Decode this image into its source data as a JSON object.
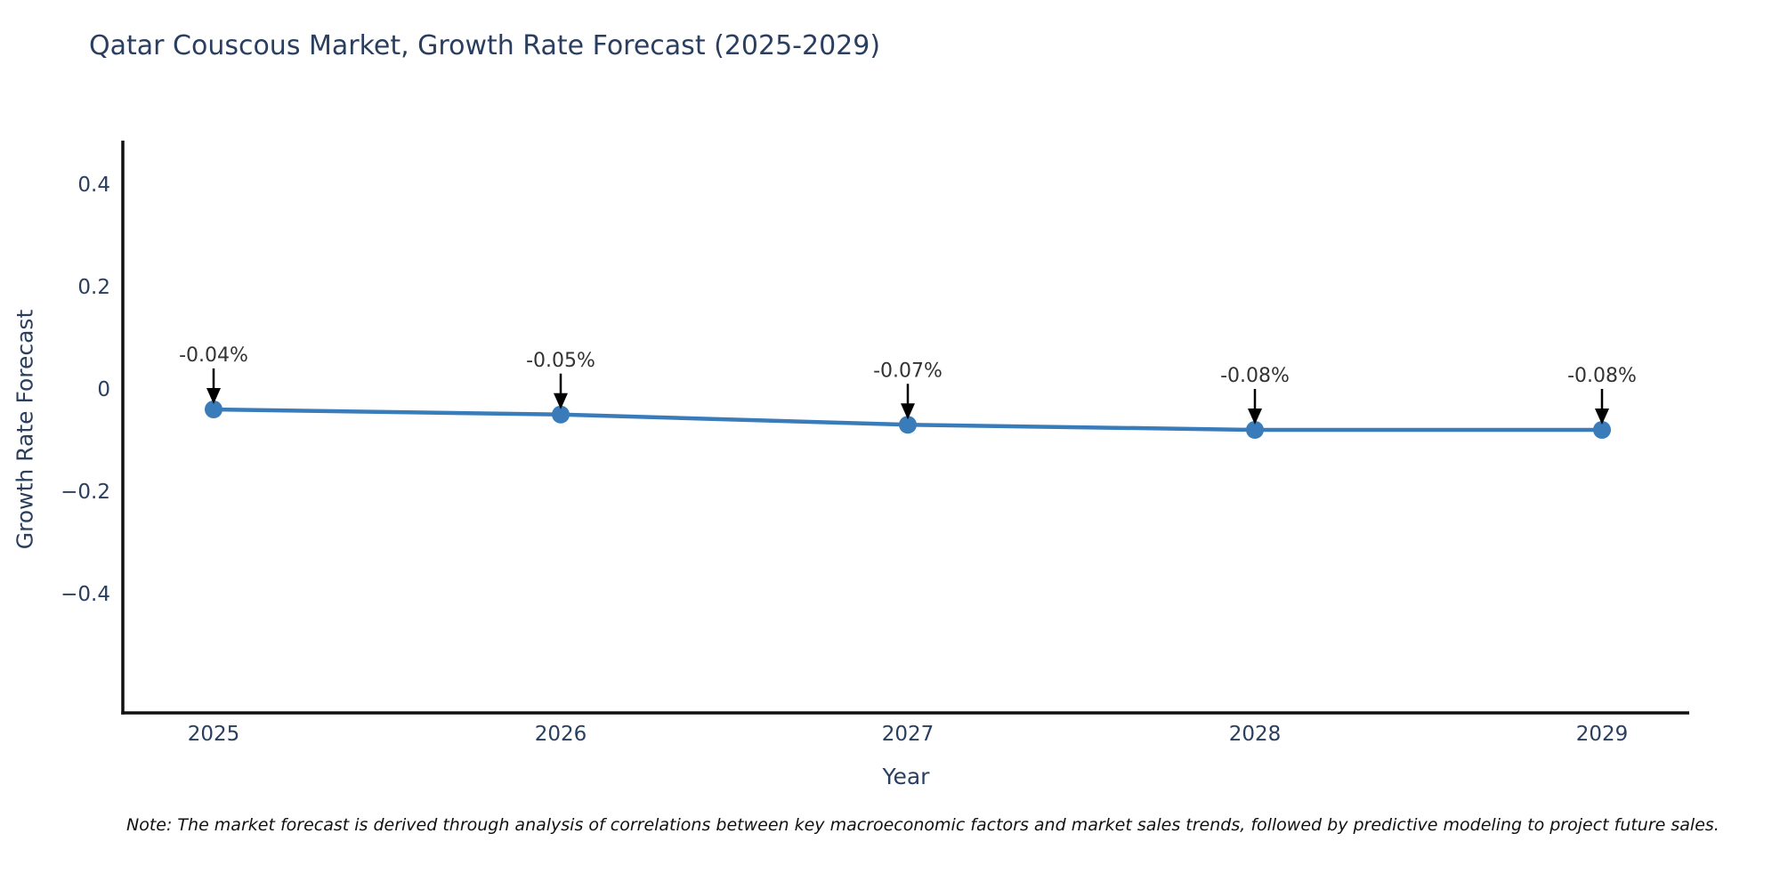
{
  "title": "Qatar Couscous Market, Growth Rate Forecast (2025-2029)",
  "note": "Note: The market forecast is derived through analysis of correlations between key macroeconomic factors and market sales trends, followed by predictive modeling to project future sales.",
  "colors": {
    "line": "#3a7cba",
    "marker": "#3a7cba",
    "axis_line": "#111111",
    "title_text": "#2a3f5f",
    "tick_text": "#2a3f5f",
    "annotation_text": "#333333",
    "arrow": "#000000",
    "background": "#ffffff"
  },
  "chart_data": {
    "type": "line",
    "title": "Qatar Couscous Market, Growth Rate Forecast (2025-2029)",
    "xlabel": "Year",
    "ylabel": "Growth Rate Forecast",
    "categories": [
      "2025",
      "2026",
      "2027",
      "2028",
      "2029"
    ],
    "values": [
      -0.04,
      -0.05,
      -0.07,
      -0.08,
      -0.08
    ],
    "point_labels": [
      "-0.04%",
      "-0.05%",
      "-0.07%",
      "-0.08%",
      "-0.08%"
    ],
    "y_ticks": [
      0.4,
      0.2,
      0,
      -0.2,
      -0.4
    ],
    "y_tick_labels": [
      "0.4",
      "0.2",
      "0",
      "−0.2",
      "−0.4"
    ],
    "ylim": [
      -0.63,
      0.48
    ],
    "grid": false,
    "legend": "none",
    "marker": "circle",
    "annotations": "arrow-above-each-point"
  }
}
